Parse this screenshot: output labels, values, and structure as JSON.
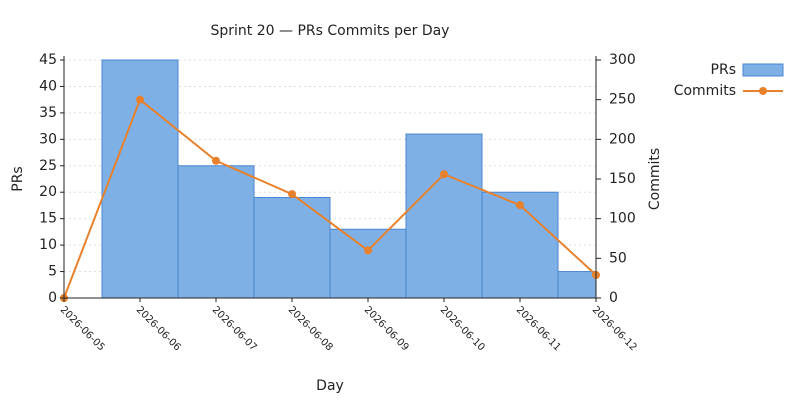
{
  "chart_data": {
    "type": "bar-line",
    "title": "Sprint 20 — PRs  Commits per Day",
    "x_label": "Day",
    "y_label": "PRs",
    "y2_label": "Commits",
    "x": [
      "2026-06-05",
      "2026-06-06",
      "2026-06-07",
      "2026-06-08",
      "2026-06-09",
      "2026-06-10",
      "2026-06-11",
      "2026-06-12"
    ],
    "series": [
      {
        "name": "PRs",
        "type": "bar",
        "color": "#7eb0e6",
        "values": [
          0,
          45,
          25,
          19,
          13,
          31,
          20,
          5
        ]
      },
      {
        "name": "Commits",
        "type": "line",
        "axis": "y2",
        "color": "#e8812c",
        "values": [
          0,
          250,
          173,
          131,
          60,
          156,
          117,
          29
        ]
      }
    ],
    "ylim": [
      0,
      45
    ],
    "yticks": [
      0,
      5,
      10,
      15,
      20,
      25,
      30,
      35,
      40,
      45
    ],
    "y2lim": [
      0,
      300
    ],
    "y2ticks": [
      0,
      50,
      100,
      150,
      200,
      250,
      300
    ],
    "grid": true,
    "legend": "top-right"
  }
}
